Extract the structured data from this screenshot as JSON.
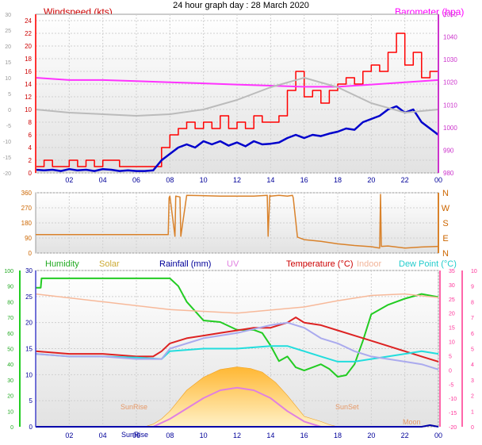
{
  "page_title": "24 hour graph day : 28 March 2020",
  "time_axis": {
    "labels": [
      "02",
      "04",
      "06",
      "08",
      "10",
      "12",
      "14",
      "16",
      "18",
      "20",
      "22",
      "00"
    ]
  },
  "panels": {
    "wind": {
      "title": "Windspeed (kts)",
      "baro_title": "Barometer (hpa)"
    },
    "direction": {
      "compass_labels": [
        "N",
        "W",
        "S",
        "E",
        "N"
      ]
    },
    "temp": {
      "humidity_label": "Humidity",
      "solar_label": "Solar",
      "rainfall_label": "Rainfall (mm)",
      "uv_label": "UV",
      "temperature_label": "Temperature (°C)",
      "indoor_label": "Indoor",
      "dewpoint_label": "Dew Point (°C)",
      "sunrise_label": "SunRise",
      "sunset_label": "SunSet",
      "sunrise_axis_label": "SunRise",
      "moon_label": "Moon"
    }
  },
  "colors": {
    "wind_gust": "#ff0000",
    "wind_avg": "#0000cc",
    "barometer": "#ff33ff",
    "wind_left_axis": "#cc0000",
    "gray_series": "#bbbbbb",
    "direction": "#d9822b",
    "humidity": "#22cc22",
    "solar": "#ffb733",
    "uv": "#e080e0",
    "temperature": "#dd2222",
    "indoor": "#f7b99a",
    "dewpoint": "#22dddd",
    "feels_like": "#aaaaee",
    "rain": "#0000aa"
  },
  "chart_data": [
    {
      "type": "line",
      "title": "Windspeed (kts)",
      "x_unit": "hour",
      "xlim": [
        0,
        24
      ],
      "ylabel": "Windspeed (kts)",
      "ylim": [
        0,
        25
      ],
      "yticks_left": [
        0,
        2,
        4,
        6,
        8,
        10,
        12,
        14,
        16,
        18,
        20,
        22,
        24
      ],
      "yticks_outer": [
        -20,
        -15,
        -10,
        -5,
        0,
        5,
        10,
        15,
        20,
        25,
        30
      ],
      "y2label": "Barometer (hpa)",
      "y2lim": [
        980,
        1050
      ],
      "y2ticks": [
        980,
        990,
        1000,
        1010,
        1020,
        1030,
        1040,
        1050
      ],
      "grid": true,
      "series": [
        {
          "name": "Windspeed (kts)",
          "color_key": "wind_gust",
          "x": [
            0,
            0.5,
            1,
            1.5,
            2,
            2.5,
            3,
            3.5,
            4,
            4.5,
            5,
            5.5,
            6,
            6.5,
            7,
            7.5,
            8,
            8.5,
            9,
            9.5,
            10,
            10.5,
            11,
            11.5,
            12,
            12.5,
            13,
            13.5,
            14,
            14.5,
            15,
            15.5,
            16,
            16.5,
            17,
            17.5,
            18,
            18.5,
            19,
            19.5,
            20,
            20.5,
            21,
            21.5,
            22,
            22.5,
            23,
            23.5,
            24
          ],
          "y": [
            1,
            2,
            1,
            1,
            2,
            1,
            2,
            1,
            2,
            2,
            1,
            1,
            1,
            1,
            1,
            4,
            6,
            7,
            8,
            7,
            8,
            7,
            9,
            7,
            8,
            7,
            9,
            8,
            8,
            9,
            13,
            16,
            12,
            13,
            11,
            13,
            14,
            15,
            14,
            16,
            17,
            16,
            19,
            22,
            17,
            19,
            15,
            16,
            18
          ]
        },
        {
          "name": "",
          "color_key": "wind_avg",
          "x": [
            0,
            0.5,
            1,
            1.5,
            2,
            2.5,
            3,
            3.5,
            4,
            4.5,
            5,
            5.5,
            6,
            6.5,
            7,
            7.5,
            8,
            8.5,
            9,
            9.5,
            10,
            10.5,
            11,
            11.5,
            12,
            12.5,
            13,
            13.5,
            14,
            14.5,
            15,
            15.5,
            16,
            16.5,
            17,
            17.5,
            18,
            18.5,
            19,
            19.5,
            20,
            20.5,
            21,
            21.5,
            22,
            22.5,
            23,
            23.5,
            24
          ],
          "y": [
            0.5,
            0.4,
            0.5,
            0.3,
            0.6,
            0.4,
            0.5,
            0.3,
            0.6,
            0.5,
            0.3,
            0.4,
            0.3,
            0.3,
            0.4,
            2,
            3,
            4,
            4.5,
            4,
            5,
            4.5,
            5,
            4.3,
            4.8,
            4.2,
            5,
            4.5,
            4.6,
            4.8,
            5.5,
            6,
            5.5,
            6,
            5.8,
            6.2,
            6.5,
            7,
            6.8,
            8,
            8.5,
            9,
            10,
            10.5,
            9.5,
            10,
            8,
            7,
            6
          ]
        },
        {
          "name": "Barometer (hpa)",
          "color_key": "barometer",
          "axis": "right",
          "x": [
            0,
            2,
            4,
            6,
            8,
            10,
            12,
            14,
            16,
            18,
            20,
            22,
            24
          ],
          "y": [
            1022,
            1021,
            1021,
            1020.5,
            1020,
            1019.5,
            1019,
            1018.5,
            1018,
            1018,
            1019,
            1020,
            1021
          ]
        },
        {
          "name": "",
          "color_key": "gray_series",
          "axis": "outer",
          "x": [
            0,
            2,
            4,
            6,
            8,
            10,
            12,
            14,
            16,
            18,
            20,
            22,
            24
          ],
          "y": [
            0,
            -1,
            -1.5,
            -2,
            -1.5,
            0,
            3,
            7,
            10,
            7,
            2,
            -1,
            0
          ]
        }
      ]
    },
    {
      "type": "line",
      "title": "",
      "x_unit": "hour",
      "xlim": [
        0,
        24
      ],
      "ylim": [
        0,
        360
      ],
      "yticks": [
        0,
        90,
        180,
        270,
        360
      ],
      "series": [
        {
          "name": "",
          "color_key": "direction",
          "x": [
            0,
            7.9,
            7.95,
            8,
            8.3,
            8.35,
            8.6,
            8.65,
            9,
            11,
            13,
            13.8,
            13.85,
            13.95,
            14,
            14.5,
            15,
            15.3,
            15.35,
            15.6,
            16,
            17,
            18,
            19,
            20,
            20.5,
            20.55,
            20.6,
            21,
            22,
            23,
            24
          ],
          "y": [
            110,
            110,
            330,
            340,
            100,
            340,
            335,
            100,
            345,
            340,
            340,
            345,
            100,
            345,
            340,
            345,
            340,
            345,
            330,
            95,
            80,
            70,
            55,
            45,
            38,
            30,
            350,
            40,
            42,
            30,
            36,
            40
          ]
        }
      ]
    },
    {
      "type": "line",
      "title": "",
      "x_unit": "hour",
      "xlim": [
        0,
        24
      ],
      "ylim": [
        0,
        30
      ],
      "yticks_left": [
        0,
        5,
        10,
        15,
        20,
        25,
        30
      ],
      "yticks_outer": [
        0,
        10,
        20,
        30,
        40,
        50,
        60,
        70,
        80,
        90,
        100
      ],
      "y2ticks_temp": [
        -20,
        -15,
        -10,
        -5,
        0,
        5,
        10,
        15,
        20,
        25,
        30,
        35
      ],
      "y2ticks_uv": [
        0,
        1,
        2,
        3,
        4,
        5,
        6,
        7,
        8,
        9,
        10
      ],
      "series": [
        {
          "name": "Humidity",
          "color_key": "humidity",
          "axis": "humidity",
          "x": [
            0,
            0.3,
            0.35,
            2,
            4,
            6,
            7,
            8,
            8.5,
            9,
            10,
            11,
            12,
            13,
            13.5,
            14,
            14.5,
            15,
            15.5,
            16,
            17,
            17.5,
            18,
            18.5,
            19,
            19.5,
            20,
            21,
            22,
            23,
            24
          ],
          "y": [
            89,
            89,
            95,
            95,
            95,
            95,
            95,
            95,
            90,
            80,
            68,
            67,
            62,
            62,
            60,
            52,
            42,
            45,
            38,
            36,
            40,
            37,
            32,
            33,
            40,
            55,
            72,
            78,
            82,
            85,
            83
          ]
        },
        {
          "name": "Solar",
          "color_key": "solar",
          "axis": "left",
          "x": [
            6.5,
            7,
            7.5,
            8,
            9,
            10,
            11,
            12,
            12.8,
            13.5,
            14.3,
            15,
            15.5,
            16,
            17,
            17.5,
            18
          ],
          "y": [
            0,
            0.5,
            1.5,
            3,
            7,
            9.5,
            11,
            11.5,
            11.2,
            10.5,
            8.5,
            6,
            4,
            2,
            1,
            0.4,
            0
          ]
        },
        {
          "name": "UV",
          "color_key": "uv",
          "axis": "left",
          "x": [
            7,
            8,
            9,
            10,
            11,
            12,
            13,
            14,
            15,
            16,
            17
          ],
          "y": [
            0,
            1.5,
            3.5,
            5.5,
            7,
            7.5,
            7,
            5.5,
            3,
            1,
            0
          ]
        },
        {
          "name": "Temperature (°C)",
          "color_key": "temperature",
          "axis": "left",
          "x": [
            0,
            2,
            4,
            6,
            7,
            7.5,
            8,
            9,
            10,
            11,
            12,
            13,
            14,
            15,
            15.5,
            16,
            17,
            18,
            19,
            20,
            21,
            22,
            23,
            24
          ],
          "y": [
            14.5,
            14,
            14,
            13.5,
            13.5,
            14.5,
            16,
            17,
            17.5,
            18,
            18.5,
            19,
            19,
            20,
            21,
            20,
            19.5,
            18.5,
            17.5,
            16.5,
            15.5,
            14.5,
            13.5,
            12.5
          ]
        },
        {
          "name": "Indoor",
          "color_key": "indoor",
          "axis": "left",
          "x": [
            0,
            4,
            8,
            12,
            16,
            18,
            20,
            22,
            24
          ],
          "y": [
            25.5,
            24,
            22.5,
            21.8,
            23,
            24.2,
            25.2,
            25.5,
            24.8
          ]
        },
        {
          "name": "Dew Point (°C)",
          "color_key": "dewpoint",
          "axis": "left",
          "x": [
            0,
            2,
            4,
            6,
            7.5,
            8,
            10,
            12,
            14,
            15,
            16,
            17,
            18,
            19,
            20,
            21,
            22,
            23,
            24
          ],
          "y": [
            14,
            13.5,
            13.5,
            13.3,
            13,
            14.5,
            15,
            15,
            15.5,
            15.5,
            14.5,
            13.5,
            12.5,
            12.5,
            13,
            13.5,
            14,
            14.5,
            14
          ]
        },
        {
          "name": "",
          "color_key": "feels_like",
          "axis": "left",
          "x": [
            0,
            2,
            4,
            6,
            7.5,
            8,
            10,
            12,
            14,
            15,
            16,
            17,
            18,
            19,
            20,
            21,
            22,
            23,
            24
          ],
          "y": [
            14,
            13.5,
            13.5,
            13,
            13,
            15,
            17,
            18,
            19.5,
            20,
            19,
            17,
            16,
            14.5,
            13.5,
            13,
            12.5,
            12,
            11
          ]
        },
        {
          "name": "Rainfall (mm)",
          "color_key": "rain",
          "axis": "left",
          "x": [
            0,
            22,
            23,
            23.5,
            24
          ],
          "y": [
            0,
            0,
            0,
            0.3,
            0
          ]
        }
      ]
    }
  ]
}
